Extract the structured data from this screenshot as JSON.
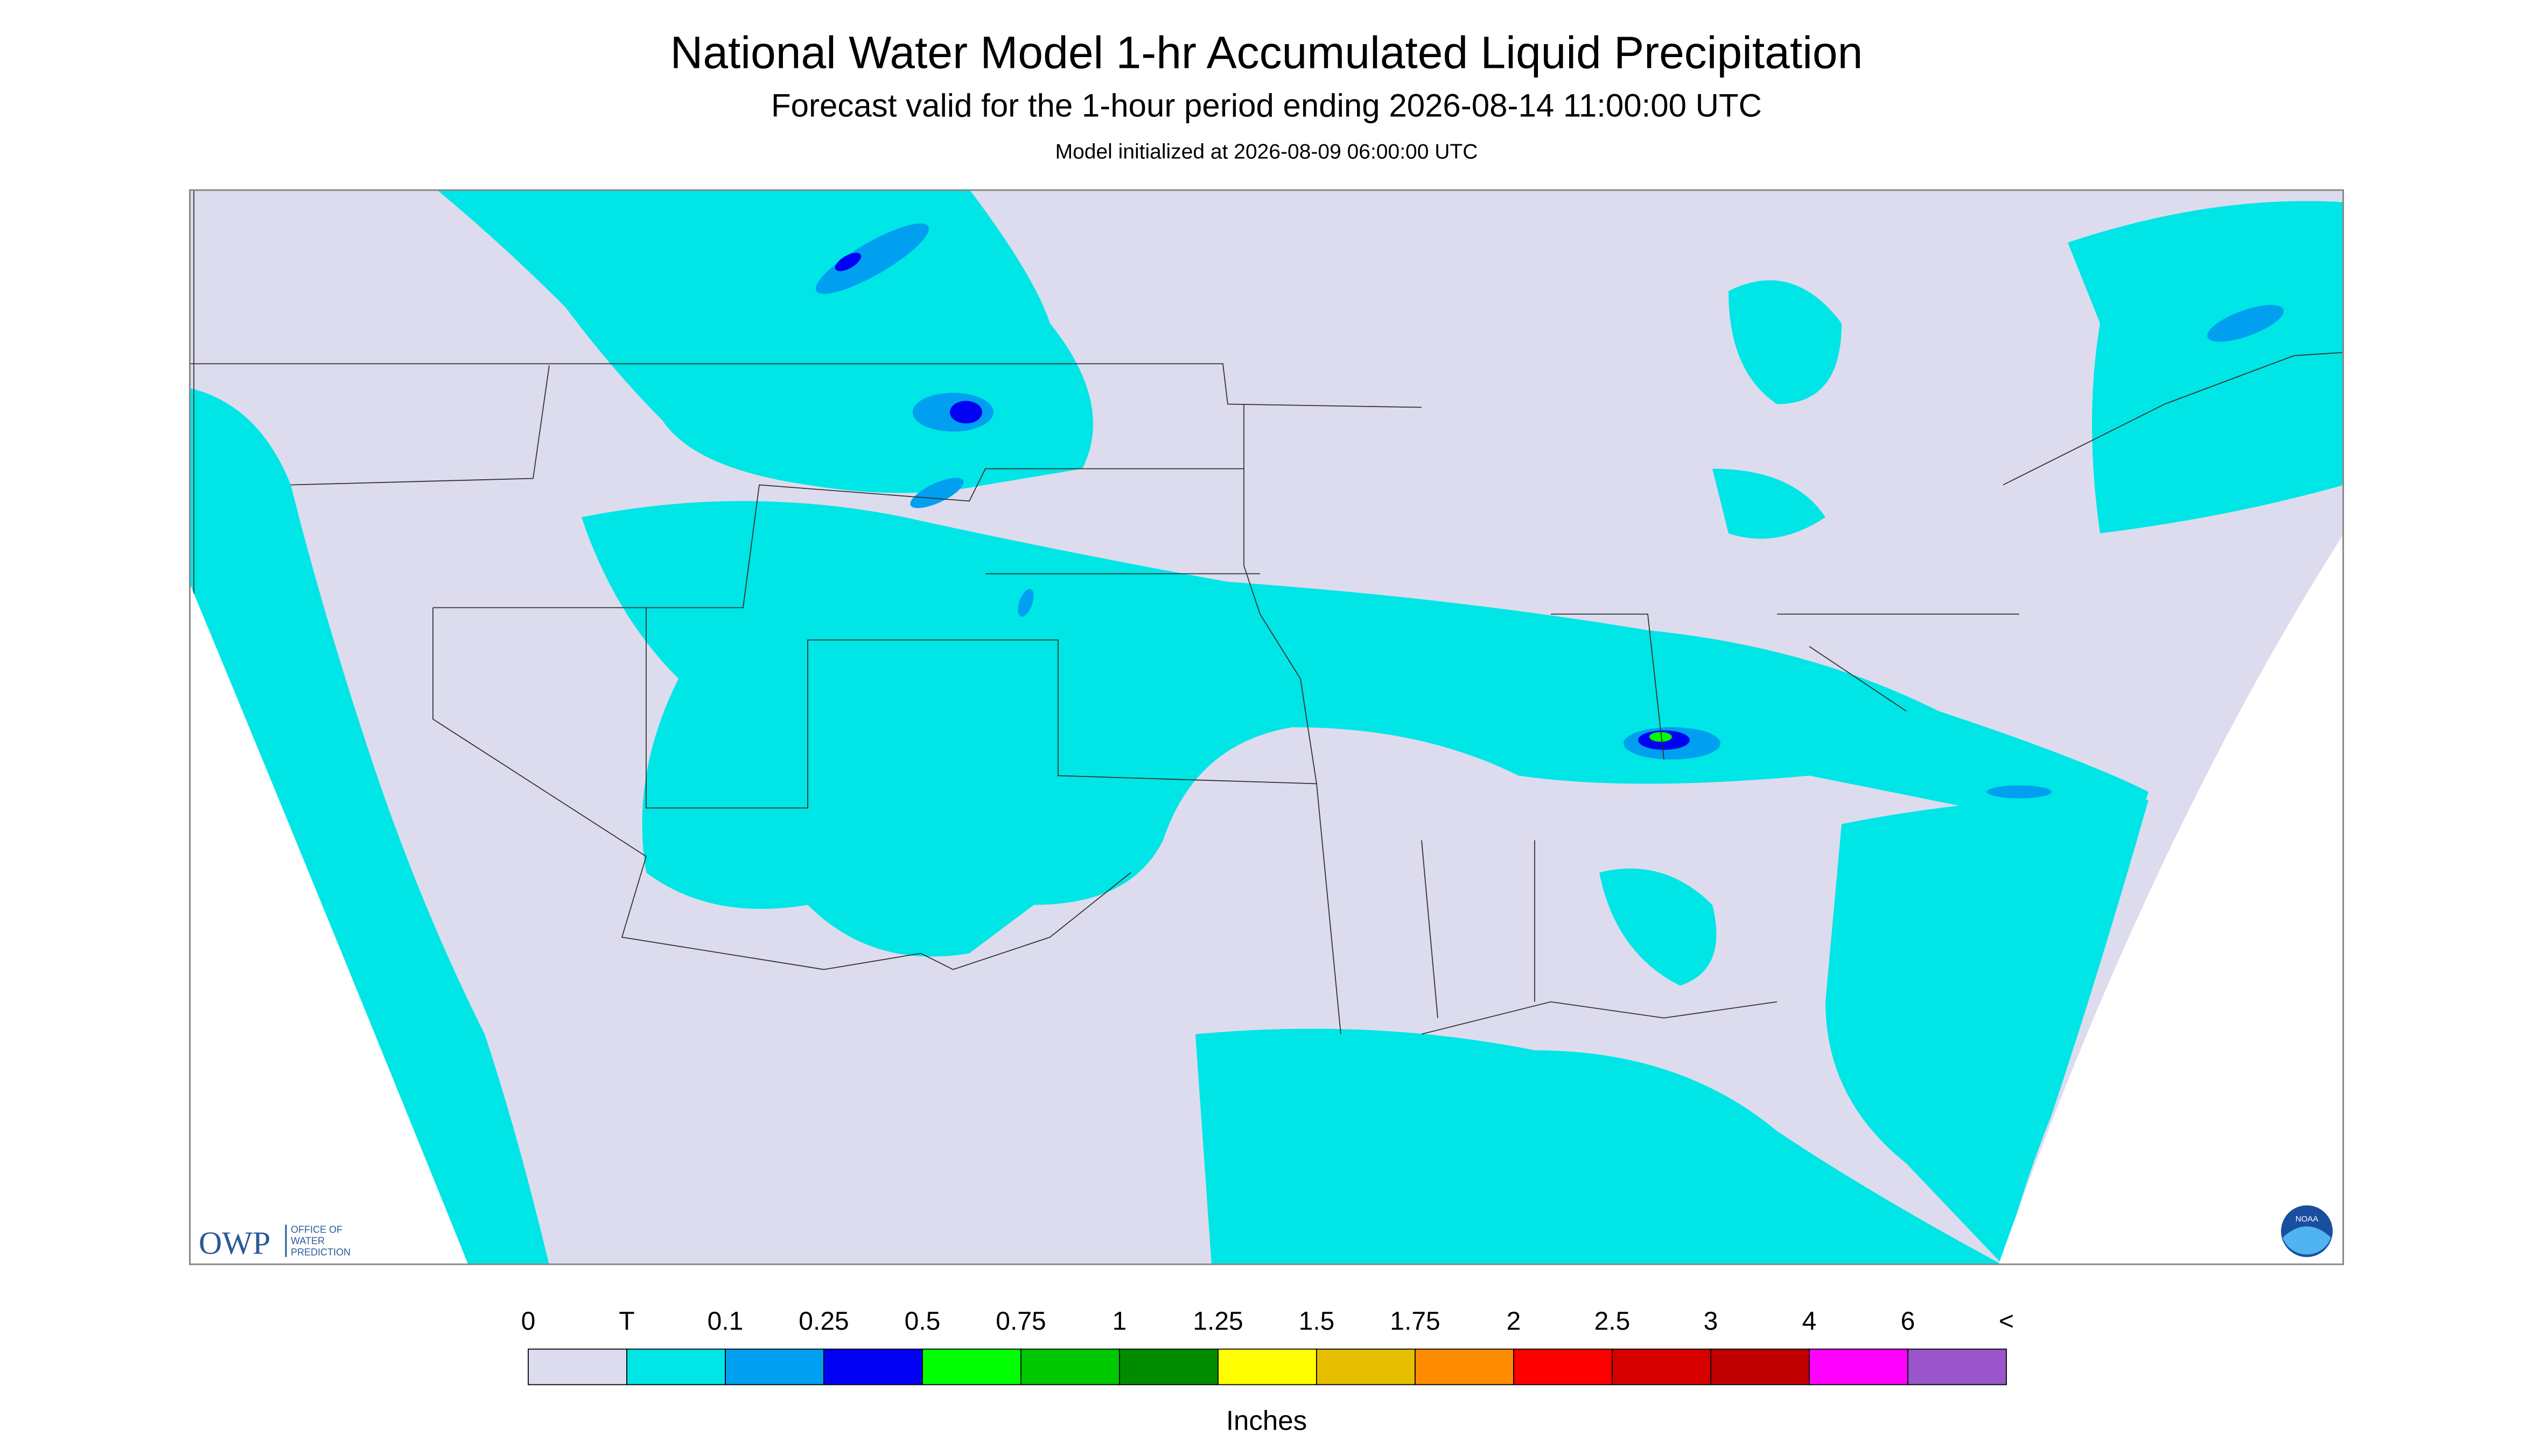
{
  "header": {
    "title": "National Water Model 1-hr Accumulated Liquid Precipitation",
    "subtitle": "Forecast valid for the 1-hour period ending 2026-08-14 11:00:00 UTC",
    "init": "Model initialized at 2026-08-09 06:00:00 UTC"
  },
  "logos": {
    "owp": "OWP",
    "owp_text": [
      "OFFICE OF",
      "WATER",
      "PREDICTION"
    ],
    "noaa": "NOAA"
  },
  "legend": {
    "labels": [
      "0",
      "T",
      "0.1",
      "0.25",
      "0.5",
      "0.75",
      "1",
      "1.25",
      "1.5",
      "1.75",
      "2",
      "2.5",
      "3",
      "4",
      "6",
      "<"
    ],
    "colors": [
      "#dcdcee",
      "#00e5e5",
      "#009ff0",
      "#0000f5",
      "#00ff00",
      "#00c800",
      "#008c00",
      "#ffff00",
      "#e6be00",
      "#ff8c00",
      "#ff0000",
      "#d70000",
      "#c00000",
      "#ff00ff",
      "#9955c9"
    ],
    "units": "Inches"
  }
}
